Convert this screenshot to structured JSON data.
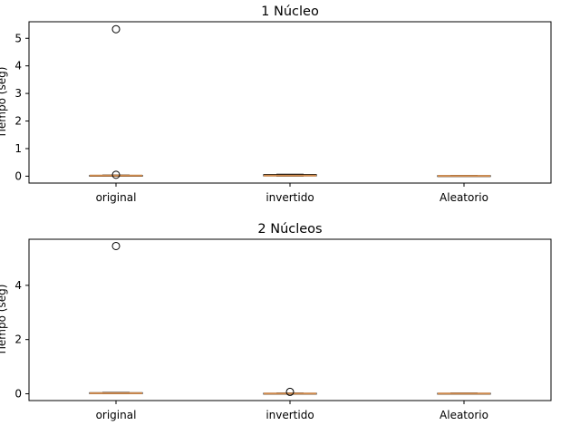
{
  "chart_data": [
    {
      "type": "boxplot",
      "title": "1 Núcleo",
      "xlabel": "",
      "ylabel": "Tiempo (seg)",
      "categories": [
        "original",
        "invertido",
        "Aleatorio"
      ],
      "ylim": [
        -0.25,
        5.6
      ],
      "yticks": [
        0,
        1,
        2,
        3,
        4,
        5
      ],
      "boxes": [
        {
          "whisker_low": 0.0,
          "q1": 0.01,
          "median": 0.02,
          "q3": 0.03,
          "whisker_high": 0.04,
          "fliers": [
            5.33,
            0.05
          ]
        },
        {
          "whisker_low": 0.0,
          "q1": 0.01,
          "median": 0.02,
          "q3": 0.06,
          "whisker_high": 0.07,
          "fliers": []
        },
        {
          "whisker_low": 0.0,
          "q1": 0.005,
          "median": 0.01,
          "q3": 0.02,
          "whisker_high": 0.03,
          "fliers": []
        }
      ]
    },
    {
      "type": "boxplot",
      "title": "2 Núcleos",
      "xlabel": "",
      "ylabel": "Tiempo (seg)",
      "categories": [
        "original",
        "invertido",
        "Aleatorio"
      ],
      "ylim": [
        -0.25,
        5.7
      ],
      "yticks": [
        0,
        2,
        4
      ],
      "boxes": [
        {
          "whisker_low": 0.0,
          "q1": 0.01,
          "median": 0.02,
          "q3": 0.04,
          "whisker_high": 0.05,
          "fliers": [
            5.45
          ]
        },
        {
          "whisker_low": 0.0,
          "q1": 0.005,
          "median": 0.01,
          "q3": 0.02,
          "whisker_high": 0.03,
          "fliers": [
            0.07
          ]
        },
        {
          "whisker_low": 0.0,
          "q1": 0.005,
          "median": 0.01,
          "q3": 0.02,
          "whisker_high": 0.03,
          "fliers": []
        }
      ]
    }
  ]
}
